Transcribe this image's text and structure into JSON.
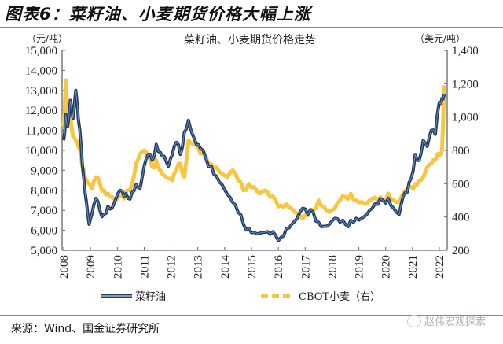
{
  "figure": {
    "title": "图表6：菜籽油、小麦期货价格大幅上涨",
    "source": "来源：Wind、国金证券研究所",
    "watermark": "赵伟宏观探索",
    "accent_color": "#26a8e0"
  },
  "chart_data": {
    "type": "line",
    "title": "菜籽油、小麦期货价格走势",
    "xlabel": "",
    "ylabel_left": "（元/吨）",
    "ylabel_right": "（美元/吨）",
    "x_ticks": [
      "2008",
      "2009",
      "2010",
      "2011",
      "2012",
      "2013",
      "2014",
      "2015",
      "2016",
      "2017",
      "2018",
      "2019",
      "2020",
      "2021",
      "2022"
    ],
    "x_range": [
      2008,
      2022.2
    ],
    "ylim_left": [
      5000,
      15000
    ],
    "ylim_right": [
      200,
      1400
    ],
    "y_ticks_left": [
      "5,000",
      "6,000",
      "7,000",
      "8,000",
      "9,000",
      "10,000",
      "11,000",
      "12,000",
      "13,000",
      "14,000",
      "15,000"
    ],
    "y_ticks_right": [
      "200",
      "400",
      "600",
      "800",
      "1,000",
      "1,200",
      "1,400"
    ],
    "grid": false,
    "legend_position": "bottom",
    "series": [
      {
        "name": "菜籽油",
        "axis": "left",
        "color": "#1b3a66",
        "style": "solid-outlined",
        "x": [
          2008.0,
          2008.08,
          2008.15,
          2008.25,
          2008.35,
          2008.45,
          2008.55,
          2008.65,
          2008.75,
          2008.85,
          2008.95,
          2009.05,
          2009.2,
          2009.35,
          2009.5,
          2009.65,
          2009.8,
          2009.95,
          2010.1,
          2010.25,
          2010.4,
          2010.55,
          2010.7,
          2010.85,
          2011.0,
          2011.15,
          2011.3,
          2011.45,
          2011.6,
          2011.75,
          2011.9,
          2012.05,
          2012.2,
          2012.35,
          2012.5,
          2012.65,
          2012.8,
          2012.95,
          2013.1,
          2013.3,
          2013.5,
          2013.7,
          2013.9,
          2014.1,
          2014.3,
          2014.5,
          2014.7,
          2014.9,
          2015.1,
          2015.3,
          2015.5,
          2015.7,
          2015.9,
          2016.1,
          2016.3,
          2016.5,
          2016.7,
          2016.9,
          2017.1,
          2017.3,
          2017.5,
          2017.7,
          2017.9,
          2018.1,
          2018.3,
          2018.5,
          2018.7,
          2018.9,
          2019.1,
          2019.3,
          2019.5,
          2019.7,
          2019.9,
          2020.1,
          2020.3,
          2020.5,
          2020.65,
          2020.8,
          2020.95,
          2021.1,
          2021.25,
          2021.4,
          2021.55,
          2021.7,
          2021.85,
          2022.0,
          2022.1,
          2022.18
        ],
        "values": [
          10500,
          11800,
          11200,
          12500,
          11600,
          13000,
          11500,
          10200,
          8600,
          7400,
          6300,
          6800,
          7600,
          7000,
          6800,
          7200,
          7100,
          7600,
          8000,
          7700,
          7600,
          7900,
          8300,
          8100,
          9200,
          9800,
          9500,
          10300,
          9900,
          9700,
          9200,
          9800,
          10400,
          9800,
          10900,
          11500,
          10800,
          10300,
          10100,
          9600,
          9200,
          8700,
          8300,
          7800,
          7400,
          6900,
          6300,
          6100,
          5900,
          5850,
          5900,
          5800,
          5750,
          5650,
          6100,
          6300,
          6600,
          7100,
          6800,
          6900,
          6400,
          6200,
          6300,
          6600,
          6400,
          6300,
          6500,
          6600,
          6600,
          6800,
          7100,
          7300,
          7500,
          7600,
          7100,
          6800,
          7700,
          7900,
          8600,
          9800,
          9500,
          10500,
          10200,
          11000,
          10800,
          12400,
          12600,
          12800
        ]
      },
      {
        "name": "CBOT小麦（右）",
        "axis": "right",
        "color": "#f7c744",
        "style": "dashed",
        "x": [
          2008.0,
          2008.08,
          2008.15,
          2008.25,
          2008.35,
          2008.45,
          2008.55,
          2008.65,
          2008.75,
          2008.85,
          2008.95,
          2009.05,
          2009.2,
          2009.35,
          2009.5,
          2009.65,
          2009.8,
          2009.95,
          2010.1,
          2010.25,
          2010.4,
          2010.55,
          2010.7,
          2010.85,
          2011.0,
          2011.15,
          2011.3,
          2011.45,
          2011.6,
          2011.75,
          2011.9,
          2012.05,
          2012.2,
          2012.35,
          2012.5,
          2012.65,
          2012.8,
          2012.95,
          2013.1,
          2013.3,
          2013.5,
          2013.7,
          2013.9,
          2014.1,
          2014.3,
          2014.5,
          2014.7,
          2014.9,
          2015.1,
          2015.3,
          2015.5,
          2015.7,
          2015.9,
          2016.1,
          2016.3,
          2016.5,
          2016.7,
          2016.9,
          2017.1,
          2017.3,
          2017.5,
          2017.7,
          2017.9,
          2018.1,
          2018.3,
          2018.5,
          2018.7,
          2018.9,
          2019.1,
          2019.3,
          2019.5,
          2019.7,
          2019.9,
          2020.1,
          2020.3,
          2020.5,
          2020.65,
          2020.8,
          2020.95,
          2021.1,
          2021.25,
          2021.4,
          2021.55,
          2021.7,
          2021.85,
          2022.0,
          2022.1,
          2022.18
        ],
        "values": [
          950,
          1220,
          1050,
          1000,
          880,
          860,
          820,
          760,
          680,
          620,
          600,
          570,
          640,
          600,
          560,
          540,
          520,
          500,
          530,
          510,
          560,
          600,
          720,
          780,
          800,
          760,
          700,
          740,
          680,
          650,
          630,
          620,
          680,
          720,
          640,
          860,
          840,
          830,
          780,
          760,
          720,
          700,
          660,
          640,
          680,
          620,
          560,
          600,
          580,
          540,
          560,
          520,
          500,
          470,
          480,
          450,
          420,
          390,
          410,
          440,
          500,
          460,
          430,
          450,
          500,
          520,
          540,
          500,
          490,
          480,
          510,
          500,
          500,
          540,
          500,
          490,
          540,
          560,
          580,
          600,
          620,
          640,
          700,
          720,
          740,
          780,
          800,
          1180
        ]
      }
    ]
  },
  "legend": {
    "item1": "菜籽油",
    "item2": "CBOT小麦（右）"
  }
}
